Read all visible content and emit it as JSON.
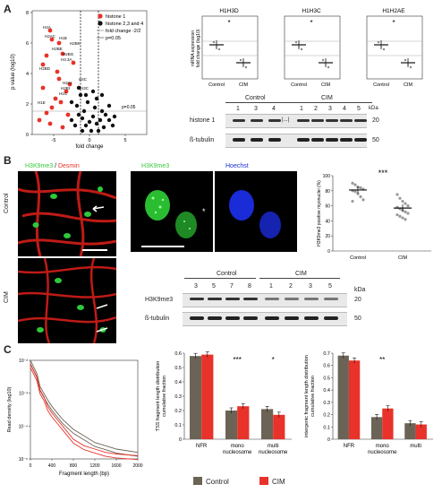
{
  "panels": {
    "A": "A",
    "B": "B",
    "C": "C"
  },
  "colors": {
    "red": "#e8322a",
    "dark": "#6b6456",
    "black": "#111111",
    "green": "#37c93b",
    "blue": "#1a2bd8"
  },
  "volcano": {
    "ylabel": "p value (log10)",
    "xlabel": "fold change",
    "xticks": [
      "-5",
      "0",
      "5"
    ],
    "yticks": [
      "0",
      "2",
      "4",
      "6",
      "8"
    ],
    "legend": [
      "histone 1",
      "histone 2,3 and 4",
      "fold change -2/2",
      "p=0.05"
    ],
    "threshold_label": "p=0.05",
    "gene_labels": [
      "H4A",
      "H2AC",
      "H1B",
      "H2BE",
      "H2BG",
      "H3.3A",
      "H2BD",
      "H4C",
      "H2AI",
      "H2BK",
      "H2BI",
      "H1C",
      "H1E",
      "H3C"
    ]
  },
  "bars_A": [
    {
      "title": "H1H3D",
      "star": "*",
      "categories": [
        "Control",
        "CIM"
      ],
      "ylabel": "mRNA expression\nfold change (log10)"
    },
    {
      "title": "H1H3C",
      "star": "*",
      "categories": [
        "Control",
        "CIM"
      ]
    },
    {
      "title": "H1H2AE",
      "star": "*",
      "categories": [
        "Control",
        "CIM"
      ]
    }
  ],
  "blot_A": {
    "group_control": "Control",
    "group_cim": "CIM",
    "lanes_control": [
      "1",
      "3",
      "4"
    ],
    "lanes_cim": [
      "1",
      "2",
      "3",
      "4",
      "5"
    ],
    "rows": [
      {
        "label": "histone 1",
        "kda": "20"
      },
      {
        "label": "ß-tubulin",
        "kda": "50"
      }
    ],
    "kda_header": "kDa",
    "ellipsis": "|...|"
  },
  "micro_B": {
    "left_title_a": "H3K9me3",
    "left_title_sep": " / ",
    "left_title_b": "Desmin",
    "row_labels": [
      "Control",
      "CIM"
    ],
    "mid_title_green": "H3K9me3",
    "mid_title_blue": "Hoechst",
    "asterisk": "*"
  },
  "scatter_B": {
    "ylabel": "H3K9me3 positive myonuclei (%)",
    "categories": [
      "Control",
      "CIM"
    ],
    "yticks": [
      "0",
      "20",
      "40",
      "60",
      "80",
      "100"
    ],
    "stars": "***",
    "means": [
      81,
      57
    ],
    "points": [
      [
        90,
        88,
        85,
        84,
        82,
        80,
        79,
        76,
        72,
        68,
        66
      ],
      [
        75,
        70,
        66,
        63,
        60,
        58,
        56,
        54,
        52,
        50,
        48,
        46,
        44,
        42
      ]
    ]
  },
  "blot_B": {
    "group_control": "Control",
    "group_cim": "CIM",
    "lanes_control": [
      "3",
      "5",
      "7",
      "8"
    ],
    "lanes_cim": [
      "1",
      "2",
      "3",
      "5"
    ],
    "rows": [
      {
        "label": "H3K9me3",
        "kda": "20"
      },
      {
        "label": "ß-tubulin",
        "kda": "50"
      }
    ],
    "kda_header": "kDa"
  },
  "chart_data": [
    {
      "type": "line",
      "xlabel": "Fragment length (bp)",
      "ylabel": "Read density (log10)",
      "xticks": [
        "0",
        "400",
        "800",
        "1200",
        "1600",
        "2000"
      ],
      "yticks": [
        "10⁻⁵",
        "10⁻⁴",
        "10⁻³",
        "10⁻²"
      ],
      "xlim": [
        0,
        2000
      ],
      "series": [
        {
          "color": "#6b6456",
          "x": [
            0,
            60,
            120,
            180,
            250,
            320,
            400,
            500,
            600,
            800,
            1000,
            1200,
            1400,
            1600,
            2000
          ],
          "y": [
            -2.0,
            -2.2,
            -2.4,
            -2.8,
            -3.0,
            -3.2,
            -3.4,
            -3.6,
            -3.8,
            -4.1,
            -4.3,
            -4.5,
            -4.6,
            -4.7,
            -4.8
          ]
        },
        {
          "color": "#e8322a",
          "x": [
            0,
            60,
            120,
            180,
            250,
            320,
            400,
            500,
            600,
            800,
            1000,
            1200,
            1400,
            1600,
            2000
          ],
          "y": [
            -2.1,
            -2.3,
            -2.5,
            -2.9,
            -3.1,
            -3.4,
            -3.6,
            -3.8,
            -4.0,
            -4.4,
            -4.6,
            -4.7,
            -4.8,
            -4.85,
            -4.9
          ]
        }
      ]
    },
    {
      "type": "bar",
      "ylabel": "TSS fragment length distribution\ncumulative fraction",
      "categories": [
        "NFR",
        "mono\nnucleosome",
        "multi\nnucleosome"
      ],
      "ylim": [
        0,
        0.6
      ],
      "yticks": [
        "0",
        "0.1",
        "0.2",
        "0.3",
        "0.4",
        "0.5",
        "0.6"
      ],
      "series": [
        {
          "name": "Control",
          "values": [
            0.58,
            0.2,
            0.21
          ]
        },
        {
          "name": "CIM",
          "values": [
            0.59,
            0.23,
            0.17
          ]
        }
      ],
      "stars": [
        "",
        "***",
        "*"
      ]
    },
    {
      "type": "bar",
      "ylabel": "intergenic fragment length distribution\ncumulative fraction",
      "categories": [
        "NFR",
        "mono\nnucleosome",
        "multi"
      ],
      "ylim": [
        0,
        0.7
      ],
      "yticks": [
        "0",
        "0.1",
        "0.2",
        "0.3",
        "0.4",
        "0.5",
        "0.6",
        "0.7"
      ],
      "series": [
        {
          "name": "Control",
          "values": [
            0.68,
            0.18,
            0.13
          ]
        },
        {
          "name": "CIM",
          "values": [
            0.64,
            0.25,
            0.12
          ]
        }
      ],
      "stars": [
        "",
        "**",
        ""
      ]
    }
  ],
  "legend_C": {
    "control": "Control",
    "cim": "CIM"
  }
}
